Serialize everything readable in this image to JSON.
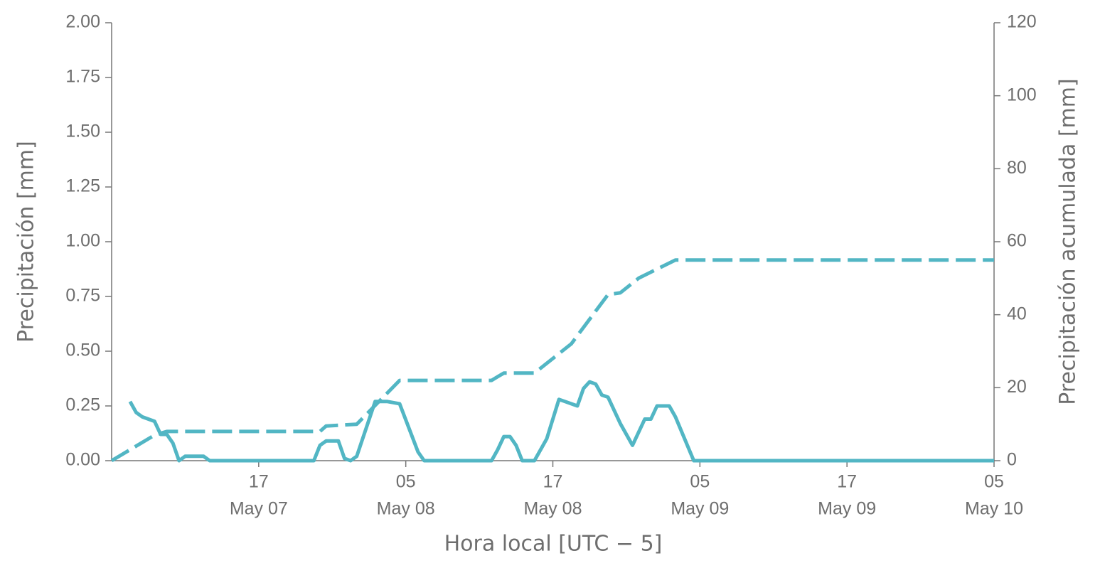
{
  "chart_data": {
    "type": "line",
    "xlabel": "Hora local [UTC − 5]",
    "ylabel": "Precipitación [mm]",
    "y2label": "Precipitación acumulada [mm]",
    "xlim": [
      "May 07 05:00",
      "May 10 05:00"
    ],
    "xticks": [
      {
        "value": "May 07 17:00",
        "label": [
          "17",
          "May 07"
        ]
      },
      {
        "value": "May 08 05:00",
        "label": [
          "05",
          "May 08"
        ]
      },
      {
        "value": "May 08 17:00",
        "label": [
          "17",
          "May 08"
        ]
      },
      {
        "value": "May 09 05:00",
        "label": [
          "05",
          "May 09"
        ]
      },
      {
        "value": "May 09 17:00",
        "label": [
          "17",
          "May 09"
        ]
      },
      {
        "value": "May 10 05:00",
        "label": [
          "05",
          "May 10"
        ]
      }
    ],
    "ylim": [
      0,
      2
    ],
    "yticks": [
      {
        "value": 0,
        "label": "0.00"
      },
      0.25,
      {
        "value": 0.5,
        "label": "0.50"
      },
      0.75,
      {
        "value": 1,
        "label": "1.00"
      },
      1.25,
      {
        "value": 1.5,
        "label": "1.50"
      },
      1.75,
      {
        "value": 2,
        "label": "2.00"
      }
    ],
    "y2lim": [
      0,
      120
    ],
    "y2ticks": [
      0,
      20,
      40,
      60,
      80,
      100,
      120
    ],
    "series": [
      {
        "color": "#52b6c4",
        "dashed": false,
        "axis": "y",
        "x": [
          "May 07 06:30",
          "May 07 07:00",
          "May 07 07:30",
          "May 07 08:30",
          "May 07 09:00",
          "May 07 09:30",
          "May 07 10:00",
          "May 07 10:30",
          "May 07 11:00",
          "May 07 12:30",
          "May 07 13:00",
          "May 07 21:30",
          "May 07 22:00",
          "May 07 22:30",
          "May 07 23:30",
          "May 08 00:00",
          "May 08 00:30",
          "May 08 01:00",
          "May 08 02:30",
          "May 08 03:30",
          "May 08 04:30",
          "May 08 06:00",
          "May 08 06:30",
          "May 08 12:00",
          "May 08 12:30",
          "May 08 13:00",
          "May 08 13:30",
          "May 08 14:00",
          "May 08 14:30",
          "May 08 15:30",
          "May 08 16:30",
          "May 08 17:30",
          "May 08 18:00",
          "May 08 19:00",
          "May 08 19:30",
          "May 08 20:00",
          "May 08 20:30",
          "May 08 21:00",
          "May 08 21:30",
          "May 08 22:30",
          "May 08 23:00",
          "May 08 23:30",
          "May 09 00:30",
          "May 09 01:00",
          "May 09 01:30",
          "May 09 02:30",
          "May 09 03:00",
          "May 09 04:30",
          "May 10 05:00"
        ],
        "values": [
          0.27,
          0.22,
          0.2,
          0.18,
          0.12,
          0.12,
          0.08,
          0,
          0.02,
          0.02,
          0,
          0,
          0.07,
          0.09,
          0.09,
          0.01,
          0,
          0.02,
          0.27,
          0.27,
          0.26,
          0.04,
          0,
          0,
          0.05,
          0.11,
          0.11,
          0.07,
          0,
          0,
          0.1,
          0.28,
          0.27,
          0.25,
          0.33,
          0.36,
          0.35,
          0.3,
          0.29,
          0.17,
          0.12,
          0.07,
          0.19,
          0.19,
          0.25,
          0.25,
          0.2,
          0,
          0
        ]
      },
      {
        "color": "#52b6c4",
        "dashed": true,
        "axis": "y2",
        "x": [
          "May 07 05:00",
          "May 07 08:30",
          "May 07 09:30",
          "May 07 22:00",
          "May 07 22:30",
          "May 08 01:00",
          "May 08 04:30",
          "May 08 12:00",
          "May 08 12:30",
          "May 08 13:00",
          "May 08 15:30",
          "May 08 18:30",
          "May 08 20:30",
          "May 08 21:30",
          "May 08 22:30",
          "May 09 00:00",
          "May 09 03:00",
          "May 10 05:00"
        ],
        "values": [
          0,
          7,
          8,
          8,
          9.5,
          10,
          22,
          22,
          23,
          24,
          24,
          32,
          41,
          45.5,
          46,
          50,
          55,
          55
        ]
      }
    ]
  }
}
